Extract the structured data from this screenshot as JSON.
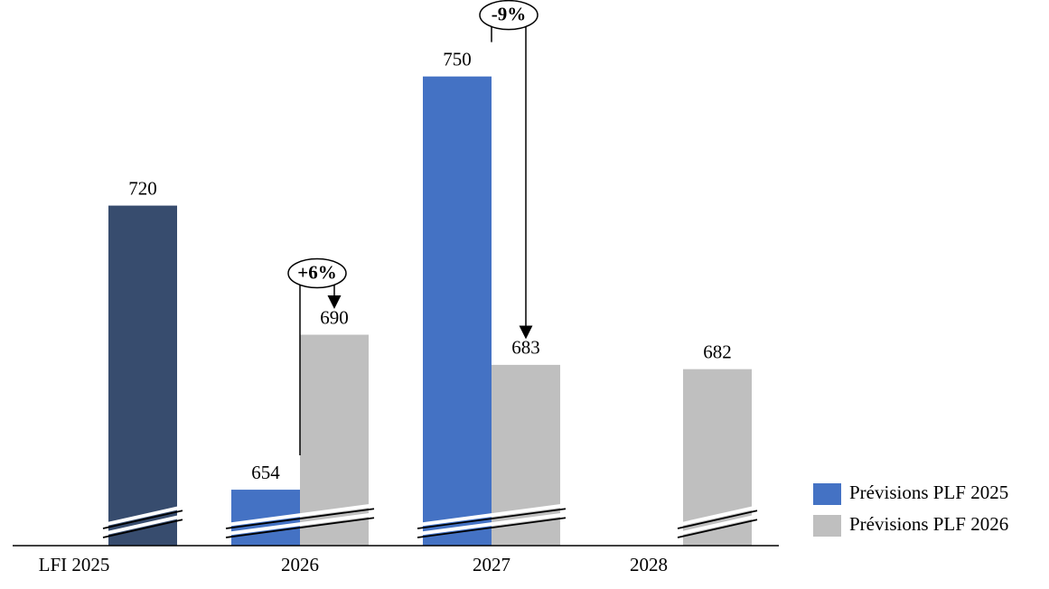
{
  "chart_data": {
    "type": "bar",
    "categories": [
      "LFI 2025",
      "2026",
      "2027",
      "2028"
    ],
    "series": [
      {
        "color": "#374c6e",
        "values": [
          720,
          null,
          null,
          null
        ]
      },
      {
        "name": "Prévisions PLF 2025",
        "color": "#4472c4",
        "values": [
          null,
          654,
          750,
          null
        ]
      },
      {
        "name": "Prévisions PLF 2026",
        "color": "#bfbfbf",
        "values": [
          null,
          690,
          683,
          682
        ]
      }
    ],
    "ylim": [
      641,
      760
    ],
    "annotations": [
      "+6%",
      "-9%"
    ],
    "legend": "right"
  }
}
